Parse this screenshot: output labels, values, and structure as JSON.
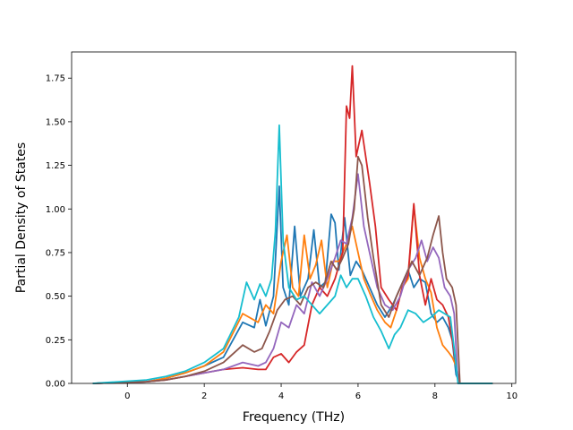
{
  "chart_data": {
    "type": "line",
    "xlabel": "Frequency (THz)",
    "ylabel": "Partial Density of States",
    "xlim": [
      -1.45,
      10.1
    ],
    "ylim": [
      0,
      1.9
    ],
    "xticks": [
      "0",
      "2",
      "4",
      "6",
      "8",
      "10"
    ],
    "yticks": [
      "0.00",
      "0.25",
      "0.50",
      "0.75",
      "1.00",
      "1.25",
      "1.50",
      "1.75"
    ],
    "grid": false,
    "legend": "none",
    "series": [
      {
        "color": "#1f77b4",
        "x": [
          -0.9,
          0.5,
          1,
          1.5,
          2,
          2.5,
          3,
          3.3,
          3.45,
          3.6,
          3.8,
          3.95,
          4.05,
          4.2,
          4.35,
          4.5,
          4.7,
          4.85,
          5,
          5.15,
          5.3,
          5.4,
          5.5,
          5.65,
          5.8,
          5.95,
          6.1,
          6.3,
          6.5,
          6.7,
          6.9,
          7.1,
          7.3,
          7.45,
          7.6,
          7.75,
          7.9,
          8.05,
          8.2,
          8.35,
          8.45,
          8.55,
          8.65,
          9.5
        ],
        "y": [
          0,
          0.01,
          0.03,
          0.06,
          0.1,
          0.15,
          0.35,
          0.32,
          0.48,
          0.33,
          0.5,
          1.13,
          0.55,
          0.45,
          0.9,
          0.5,
          0.6,
          0.88,
          0.55,
          0.58,
          0.97,
          0.92,
          0.65,
          0.95,
          0.62,
          0.7,
          0.65,
          0.55,
          0.45,
          0.38,
          0.45,
          0.55,
          0.65,
          0.55,
          0.6,
          0.58,
          0.4,
          0.35,
          0.38,
          0.32,
          0.25,
          0.05,
          0,
          0
        ]
      },
      {
        "color": "#ff7f0e",
        "x": [
          -0.9,
          0.5,
          1,
          1.5,
          2,
          2.5,
          3,
          3.4,
          3.6,
          3.8,
          4,
          4.15,
          4.3,
          4.45,
          4.6,
          4.75,
          4.9,
          5.05,
          5.2,
          5.35,
          5.5,
          5.7,
          5.85,
          6,
          6.15,
          6.3,
          6.5,
          6.7,
          6.85,
          7,
          7.15,
          7.3,
          7.45,
          7.6,
          7.75,
          7.9,
          8.05,
          8.2,
          8.35,
          8.45,
          8.55,
          8.65,
          9.5
        ],
        "y": [
          0,
          0.01,
          0.03,
          0.06,
          0.1,
          0.18,
          0.4,
          0.35,
          0.45,
          0.4,
          0.7,
          0.85,
          0.55,
          0.5,
          0.85,
          0.6,
          0.68,
          0.82,
          0.55,
          0.7,
          0.7,
          0.8,
          0.9,
          0.75,
          0.6,
          0.52,
          0.42,
          0.35,
          0.32,
          0.42,
          0.55,
          0.6,
          1.02,
          0.72,
          0.6,
          0.52,
          0.32,
          0.22,
          0.18,
          0.15,
          0.1,
          0,
          0
        ]
      },
      {
        "color": "#d62728",
        "x": [
          -0.9,
          0.5,
          1,
          1.5,
          2,
          2.5,
          3,
          3.4,
          3.6,
          3.8,
          4,
          4.2,
          4.4,
          4.6,
          4.8,
          5,
          5.2,
          5.4,
          5.6,
          5.7,
          5.78,
          5.85,
          5.95,
          6.1,
          6.3,
          6.45,
          6.6,
          6.8,
          7,
          7.15,
          7.3,
          7.45,
          7.6,
          7.75,
          7.9,
          8.05,
          8.2,
          8.35,
          8.45,
          8.55,
          8.65,
          9.5
        ],
        "y": [
          0,
          0.01,
          0.02,
          0.04,
          0.06,
          0.08,
          0.09,
          0.08,
          0.08,
          0.15,
          0.17,
          0.12,
          0.18,
          0.22,
          0.45,
          0.55,
          0.5,
          0.6,
          0.75,
          1.59,
          1.52,
          1.82,
          1.3,
          1.45,
          1.15,
          0.9,
          0.55,
          0.48,
          0.42,
          0.55,
          0.62,
          1.03,
          0.62,
          0.45,
          0.6,
          0.48,
          0.45,
          0.38,
          0.25,
          0.1,
          0,
          0
        ]
      },
      {
        "color": "#9467bd",
        "x": [
          -0.9,
          0.5,
          1,
          1.5,
          2,
          2.5,
          3,
          3.4,
          3.6,
          3.8,
          4,
          4.2,
          4.4,
          4.6,
          4.8,
          5,
          5.2,
          5.4,
          5.55,
          5.7,
          5.85,
          6,
          6.15,
          6.3,
          6.5,
          6.7,
          6.9,
          7.1,
          7.3,
          7.5,
          7.65,
          7.8,
          7.95,
          8.1,
          8.25,
          8.4,
          8.5,
          8.6,
          9.5
        ],
        "y": [
          0,
          0.01,
          0.02,
          0.04,
          0.06,
          0.08,
          0.12,
          0.1,
          0.12,
          0.2,
          0.35,
          0.32,
          0.45,
          0.4,
          0.58,
          0.5,
          0.6,
          0.72,
          0.82,
          0.8,
          0.95,
          1.2,
          0.9,
          0.75,
          0.55,
          0.45,
          0.42,
          0.5,
          0.65,
          0.72,
          0.82,
          0.7,
          0.78,
          0.72,
          0.55,
          0.5,
          0.4,
          0,
          0
        ]
      },
      {
        "color": "#8c564b",
        "x": [
          -0.9,
          0.5,
          1,
          1.5,
          2,
          2.5,
          3,
          3.3,
          3.5,
          3.7,
          3.9,
          4.1,
          4.3,
          4.5,
          4.7,
          4.9,
          5.1,
          5.3,
          5.45,
          5.6,
          5.75,
          5.9,
          6,
          6.1,
          6.25,
          6.4,
          6.6,
          6.8,
          7,
          7.2,
          7.4,
          7.6,
          7.8,
          7.95,
          8.1,
          8.2,
          8.3,
          8.45,
          8.55,
          8.65,
          9.5
        ],
        "y": [
          0,
          0.01,
          0.02,
          0.04,
          0.07,
          0.12,
          0.22,
          0.18,
          0.2,
          0.3,
          0.42,
          0.48,
          0.5,
          0.45,
          0.55,
          0.58,
          0.55,
          0.7,
          0.65,
          0.72,
          0.8,
          1.0,
          1.3,
          1.25,
          0.95,
          0.72,
          0.45,
          0.38,
          0.5,
          0.6,
          0.7,
          0.62,
          0.72,
          0.85,
          0.96,
          0.75,
          0.6,
          0.55,
          0.45,
          0,
          0
        ]
      },
      {
        "color": "#17becf",
        "x": [
          -0.9,
          0.5,
          1,
          1.5,
          2,
          2.5,
          2.9,
          3.1,
          3.3,
          3.45,
          3.6,
          3.75,
          3.85,
          3.95,
          4.05,
          4.2,
          4.4,
          4.6,
          4.8,
          5,
          5.2,
          5.4,
          5.55,
          5.7,
          5.85,
          6,
          6.2,
          6.4,
          6.6,
          6.8,
          6.95,
          7.1,
          7.3,
          7.5,
          7.7,
          7.9,
          8.1,
          8.25,
          8.4,
          8.5,
          8.6,
          9.5
        ],
        "y": [
          0,
          0.02,
          0.04,
          0.07,
          0.12,
          0.2,
          0.38,
          0.58,
          0.48,
          0.57,
          0.5,
          0.6,
          0.87,
          1.48,
          0.82,
          0.55,
          0.48,
          0.5,
          0.45,
          0.4,
          0.45,
          0.5,
          0.62,
          0.55,
          0.6,
          0.6,
          0.5,
          0.38,
          0.3,
          0.2,
          0.28,
          0.32,
          0.42,
          0.4,
          0.35,
          0.38,
          0.42,
          0.4,
          0.38,
          0.2,
          0,
          0
        ]
      }
    ]
  }
}
